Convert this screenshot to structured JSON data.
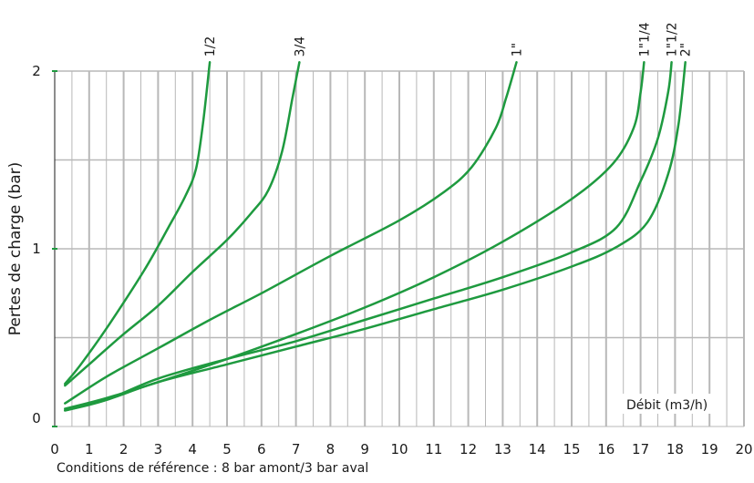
{
  "chart_data": {
    "type": "line",
    "ylabel": "Pertes de charge (bar)",
    "xlabel": "Débit (m3/h)",
    "xlim": [
      0,
      20
    ],
    "ylim": [
      0,
      2
    ],
    "x_ticks": [
      "0",
      "1",
      "2",
      "3",
      "4",
      "5",
      "6",
      "7",
      "8",
      "9",
      "10",
      "11",
      "12",
      "13",
      "14",
      "15",
      "16",
      "17",
      "18",
      "19",
      "20"
    ],
    "y_ticks": [
      "0",
      "1",
      "2"
    ],
    "grid": true,
    "line_color": "#1e9a3f",
    "grid_color": "#b8b8b8",
    "series": [
      {
        "name": "1/2",
        "points": [
          [
            0.3,
            0.24
          ],
          [
            0.8,
            0.36
          ],
          [
            1.6,
            0.58
          ],
          [
            2.6,
            0.88
          ],
          [
            3.3,
            1.12
          ],
          [
            3.8,
            1.3
          ],
          [
            4.1,
            1.45
          ],
          [
            4.3,
            1.7
          ],
          [
            4.5,
            2.05
          ]
        ]
      },
      {
        "name": "3/4",
        "points": [
          [
            0.3,
            0.23
          ],
          [
            1.0,
            0.35
          ],
          [
            2.0,
            0.52
          ],
          [
            3.0,
            0.68
          ],
          [
            4.0,
            0.87
          ],
          [
            5.0,
            1.05
          ],
          [
            5.7,
            1.2
          ],
          [
            6.2,
            1.33
          ],
          [
            6.6,
            1.55
          ],
          [
            6.9,
            1.85
          ],
          [
            7.1,
            2.05
          ]
        ]
      },
      {
        "name": "1\"",
        "points": [
          [
            0.3,
            0.13
          ],
          [
            1.5,
            0.28
          ],
          [
            3.0,
            0.44
          ],
          [
            4.5,
            0.6
          ],
          [
            6.0,
            0.75
          ],
          [
            8.0,
            0.96
          ],
          [
            10.0,
            1.16
          ],
          [
            11.3,
            1.32
          ],
          [
            12.1,
            1.46
          ],
          [
            12.8,
            1.68
          ],
          [
            13.1,
            1.85
          ],
          [
            13.4,
            2.05
          ]
        ]
      },
      {
        "name": "1\"1/4",
        "points": [
          [
            0.3,
            0.1
          ],
          [
            1.5,
            0.16
          ],
          [
            3.0,
            0.25
          ],
          [
            5.0,
            0.38
          ],
          [
            7.0,
            0.52
          ],
          [
            9.0,
            0.67
          ],
          [
            11.0,
            0.84
          ],
          [
            13.0,
            1.04
          ],
          [
            15.0,
            1.28
          ],
          [
            16.2,
            1.48
          ],
          [
            16.8,
            1.68
          ],
          [
            17.0,
            1.88
          ],
          [
            17.1,
            2.05
          ]
        ]
      },
      {
        "name": "1\"1/2",
        "points": [
          [
            0.3,
            0.09
          ],
          [
            1.5,
            0.15
          ],
          [
            3.0,
            0.27
          ],
          [
            5.0,
            0.38
          ],
          [
            7.0,
            0.48
          ],
          [
            9.0,
            0.6
          ],
          [
            11.0,
            0.72
          ],
          [
            13.0,
            0.84
          ],
          [
            15.0,
            0.98
          ],
          [
            16.3,
            1.12
          ],
          [
            17.0,
            1.38
          ],
          [
            17.5,
            1.62
          ],
          [
            17.8,
            1.88
          ],
          [
            17.9,
            2.05
          ]
        ]
      },
      {
        "name": "2\"",
        "points": [
          [
            0.3,
            0.09
          ],
          [
            1.5,
            0.15
          ],
          [
            3.0,
            0.25
          ],
          [
            5.0,
            0.35
          ],
          [
            7.0,
            0.45
          ],
          [
            9.0,
            0.55
          ],
          [
            11.0,
            0.66
          ],
          [
            13.0,
            0.77
          ],
          [
            15.0,
            0.9
          ],
          [
            16.3,
            1.01
          ],
          [
            17.2,
            1.15
          ],
          [
            17.8,
            1.42
          ],
          [
            18.1,
            1.7
          ],
          [
            18.3,
            2.05
          ]
        ]
      }
    ]
  },
  "footnote": "Conditions de référence : 8 bar amont/3 bar aval"
}
